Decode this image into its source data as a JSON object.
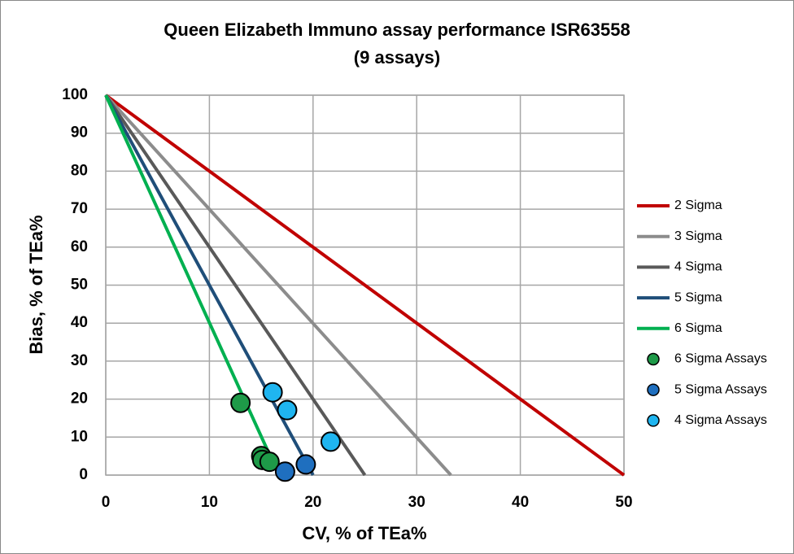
{
  "chart_data": {
    "type": "scatter",
    "title": "Queen Elizabeth Immuno assay performance ISR63558",
    "subtitle": "(9 assays)",
    "x_label": "CV, % of TEa%",
    "y_label": "Bias, % of TEa%",
    "xlim": [
      0,
      50
    ],
    "xticks": [
      0,
      10,
      20,
      30,
      40,
      50
    ],
    "ylim": [
      0,
      100
    ],
    "yticks": [
      0,
      10,
      20,
      30,
      40,
      50,
      60,
      70,
      80,
      90,
      100
    ],
    "grid": true,
    "legend": "right",
    "series": [
      {
        "name": "2 Sigma",
        "mode": "line",
        "color": "#c00000",
        "x": [
          0,
          50
        ],
        "values": [
          100,
          0
        ]
      },
      {
        "name": "3 Sigma",
        "mode": "line",
        "color": "#8c8c8c",
        "x": [
          0,
          33.3
        ],
        "values": [
          100,
          0
        ]
      },
      {
        "name": "4 Sigma",
        "mode": "line",
        "color": "#595959",
        "x": [
          0,
          25
        ],
        "values": [
          100,
          0
        ]
      },
      {
        "name": "5 Sigma",
        "mode": "line",
        "color": "#1f4e79",
        "x": [
          0,
          20
        ],
        "values": [
          100,
          0
        ]
      },
      {
        "name": "6 Sigma",
        "mode": "line",
        "color": "#00b050",
        "x": [
          0,
          16.7
        ],
        "values": [
          100,
          0
        ]
      },
      {
        "name": "6 Sigma Assays",
        "mode": "marker",
        "color": "#1e9a48",
        "x": [
          13,
          15,
          15.1,
          15.8
        ],
        "values": [
          19,
          5,
          4,
          3.5
        ]
      },
      {
        "name": "5 Sigma Assays",
        "mode": "marker",
        "color": "#1f6fbf",
        "x": [
          17.3,
          19.3
        ],
        "values": [
          0.9,
          2.8
        ]
      },
      {
        "name": "4 Sigma Assays",
        "mode": "marker",
        "color": "#1fb5f0",
        "x": [
          16.1,
          17.5,
          21.7
        ],
        "values": [
          21.8,
          17.1,
          8.8
        ]
      }
    ]
  }
}
